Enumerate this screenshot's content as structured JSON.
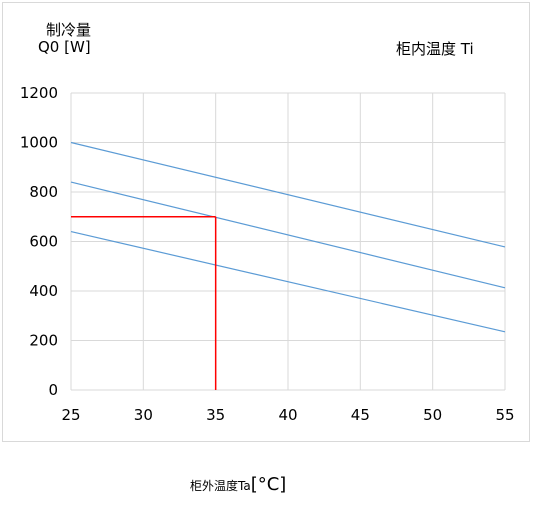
{
  "chart_data": {
    "type": "line",
    "ylabel": [
      "制冷量",
      "Q0 [W]"
    ],
    "xlabel": "柜外温度Ta",
    "xlabel_unit": "[°C]",
    "legend_title": "柜内温度  Ti",
    "xlim": [
      25,
      55
    ],
    "ylim": [
      0,
      1200
    ],
    "xticks": [
      "25",
      "30",
      "35",
      "40",
      "45",
      "50",
      "55"
    ],
    "yticks": [
      "0",
      "200",
      "400",
      "600",
      "800",
      "1000",
      "1200"
    ],
    "grid": true,
    "series": [
      {
        "x": [
          25,
          55
        ],
        "values": [
          1000,
          578
        ],
        "color": "#5b9bd5"
      },
      {
        "x": [
          25,
          55
        ],
        "values": [
          840,
          413
        ],
        "color": "#5b9bd5"
      },
      {
        "x": [
          25,
          55
        ],
        "values": [
          640,
          235
        ],
        "color": "#5b9bd5"
      }
    ],
    "annotation": {
      "x": 35,
      "y": 700,
      "color": "#ff0000"
    }
  }
}
